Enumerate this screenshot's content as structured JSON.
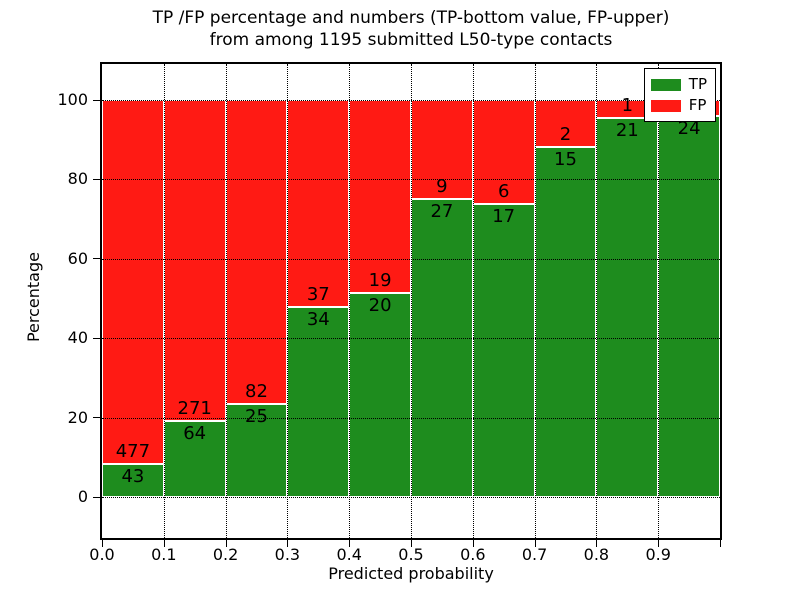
{
  "figure": {
    "title_line1": "TP /FP percentage and numbers (TP-bottom value, FP-upper)",
    "title_line2": "from among 1195 submitted L50-type contacts",
    "xlabel": "Predicted probability",
    "ylabel": "Percentage"
  },
  "legend": {
    "position": "upper right",
    "entries": [
      {
        "label": "TP",
        "color": "#1e8c1e"
      },
      {
        "label": "FP",
        "color": "#ff1a14"
      }
    ]
  },
  "axes": {
    "x_tick_labels": [
      "0.0",
      "0.1",
      "0.2",
      "0.3",
      "0.4",
      "0.5",
      "0.6",
      "0.7",
      "0.8",
      "0.9"
    ],
    "y_tick_labels": [
      "0",
      "20",
      "40",
      "60",
      "80",
      "100"
    ],
    "y_tick_values": [
      0,
      20,
      40,
      60,
      80,
      100
    ]
  },
  "chart_data": {
    "type": "bar",
    "stacked": true,
    "normalized_to_percent": true,
    "title": "TP /FP percentage and numbers (TP-bottom value, FP-upper) from among 1195 submitted L50-type contacts",
    "xlabel": "Predicted probability",
    "ylabel": "Percentage",
    "total_contacts": 1195,
    "categories": [
      "0.0-0.1",
      "0.1-0.2",
      "0.2-0.3",
      "0.3-0.4",
      "0.4-0.5",
      "0.5-0.6",
      "0.6-0.7",
      "0.7-0.8",
      "0.8-0.9",
      "0.9-1.0"
    ],
    "series": [
      {
        "name": "TP",
        "color": "#1e8c1e",
        "counts": [
          43,
          64,
          25,
          34,
          20,
          27,
          17,
          15,
          21,
          24
        ]
      },
      {
        "name": "FP",
        "color": "#ff1a14",
        "counts": [
          477,
          271,
          82,
          37,
          19,
          9,
          6,
          2,
          1,
          1
        ]
      }
    ],
    "tp_percent_of_bin": [
      8.3,
      19.1,
      23.4,
      47.9,
      51.3,
      75.0,
      73.9,
      88.2,
      95.5,
      96.0
    ],
    "bar_value_labels": {
      "tp": [
        "43",
        "64",
        "25",
        "34",
        "20",
        "27",
        "17",
        "15",
        "21",
        "24"
      ],
      "fp": [
        "477",
        "271",
        "82",
        "37",
        "19",
        "9",
        "6",
        "2",
        "1",
        ""
      ]
    },
    "xlim": [
      0.0,
      1.0
    ],
    "ylim": [
      -10.8,
      109.6
    ],
    "grid": true,
    "grid_style": "dotted",
    "legend_position": "upper right"
  }
}
